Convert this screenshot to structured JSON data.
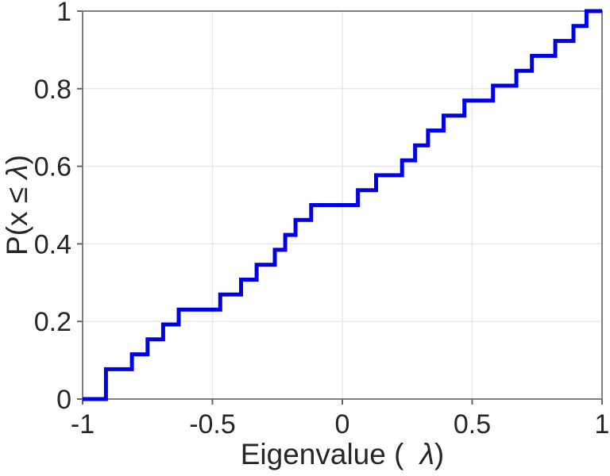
{
  "chart_data": {
    "type": "line",
    "subtype": "ecdf-staircase",
    "title": "",
    "xlabel": "Eigenvalue ( λ)",
    "ylabel": "P(x ≤ λ)",
    "xlim": [
      -1,
      1
    ],
    "ylim": [
      0,
      1
    ],
    "xticks": [
      -1,
      -0.5,
      0,
      0.5,
      1
    ],
    "xtick_labels": [
      "-1",
      "-0.5",
      "0",
      "0.5",
      "1"
    ],
    "yticks": [
      0,
      0.2,
      0.4,
      0.6,
      0.8,
      1
    ],
    "ytick_labels": [
      "0",
      "0.2",
      "0.4",
      "0.6",
      "0.8",
      "1"
    ],
    "grid": true,
    "legend": null,
    "n_points": 26,
    "eigenvalues_sorted": [
      -0.91,
      -0.91,
      -0.81,
      -0.75,
      -0.69,
      -0.63,
      -0.47,
      -0.39,
      -0.33,
      -0.26,
      -0.22,
      -0.18,
      -0.12,
      0.06,
      0.13,
      0.23,
      0.28,
      0.33,
      0.39,
      0.47,
      0.58,
      0.67,
      0.73,
      0.82,
      0.89,
      0.94
    ],
    "cdf_values_after_each_jump": [
      0.038,
      0.077,
      0.115,
      0.154,
      0.192,
      0.231,
      0.269,
      0.308,
      0.346,
      0.385,
      0.423,
      0.462,
      0.5,
      0.538,
      0.577,
      0.615,
      0.654,
      0.692,
      0.731,
      0.769,
      0.808,
      0.846,
      0.885,
      0.923,
      0.962,
      1.0
    ],
    "colors": {
      "line": "#0000E8",
      "grid": "#E8E8E8",
      "axis_box": "#808080",
      "tick": "#666666",
      "tick_label": "#262626",
      "axis_label": "#262626",
      "background": "#FFFFFF"
    },
    "line_width": 5
  }
}
